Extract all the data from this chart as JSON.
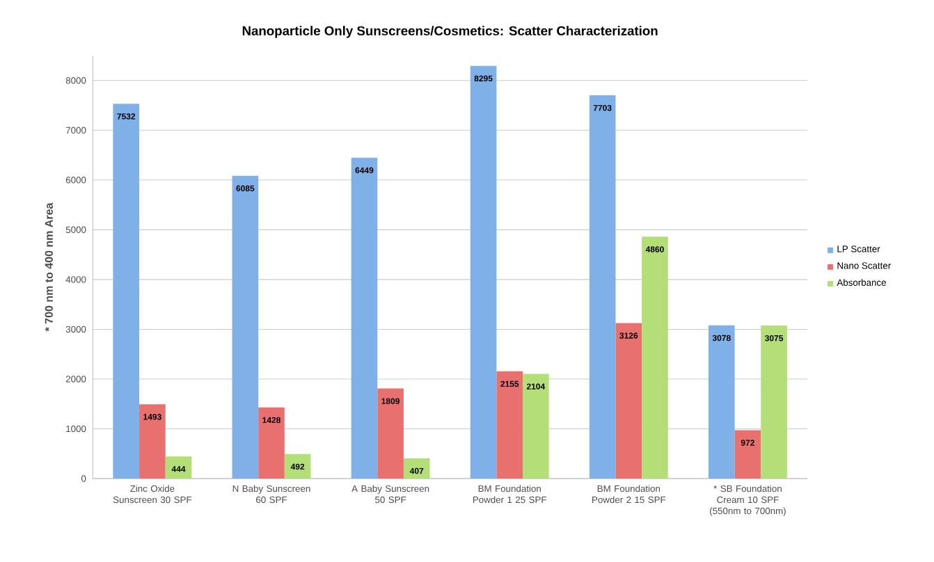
{
  "chart_data": {
    "type": "bar",
    "title": "Nanoparticle Only Sunscreens/Cosmetics: Scatter Characterization",
    "ylabel": "* 700 nm to 400 nm  Area",
    "categories": [
      "Zinc Oxide Sunscreen  30 SPF",
      "N Baby Sunscreen  60 SPF",
      "A Baby Sunscreen  50 SPF",
      "BM Foundation Powder 1  25 SPF",
      "BM Foundation Powder 2  15 SPF",
      "* SB Foundation Cream  10 SPF (550nm to 700nm)"
    ],
    "series": [
      {
        "name": "LP Scatter",
        "color": "#7fb0e8",
        "values": [
          7532,
          6085,
          6449,
          8295,
          7703,
          3078
        ]
      },
      {
        "name": "Nano Scatter",
        "color": "#e8706e",
        "values": [
          1493,
          1428,
          1809,
          2155,
          3126,
          972
        ]
      },
      {
        "name": "Absorbance",
        "color": "#b3de78",
        "values": [
          444,
          492,
          407,
          2104,
          4860,
          3075
        ]
      }
    ],
    "ylim": [
      0,
      8500
    ],
    "yticks": [
      0,
      1000,
      2000,
      3000,
      4000,
      5000,
      6000,
      7000,
      8000
    ],
    "grid": "y",
    "legend": "right",
    "data_labels": true
  }
}
